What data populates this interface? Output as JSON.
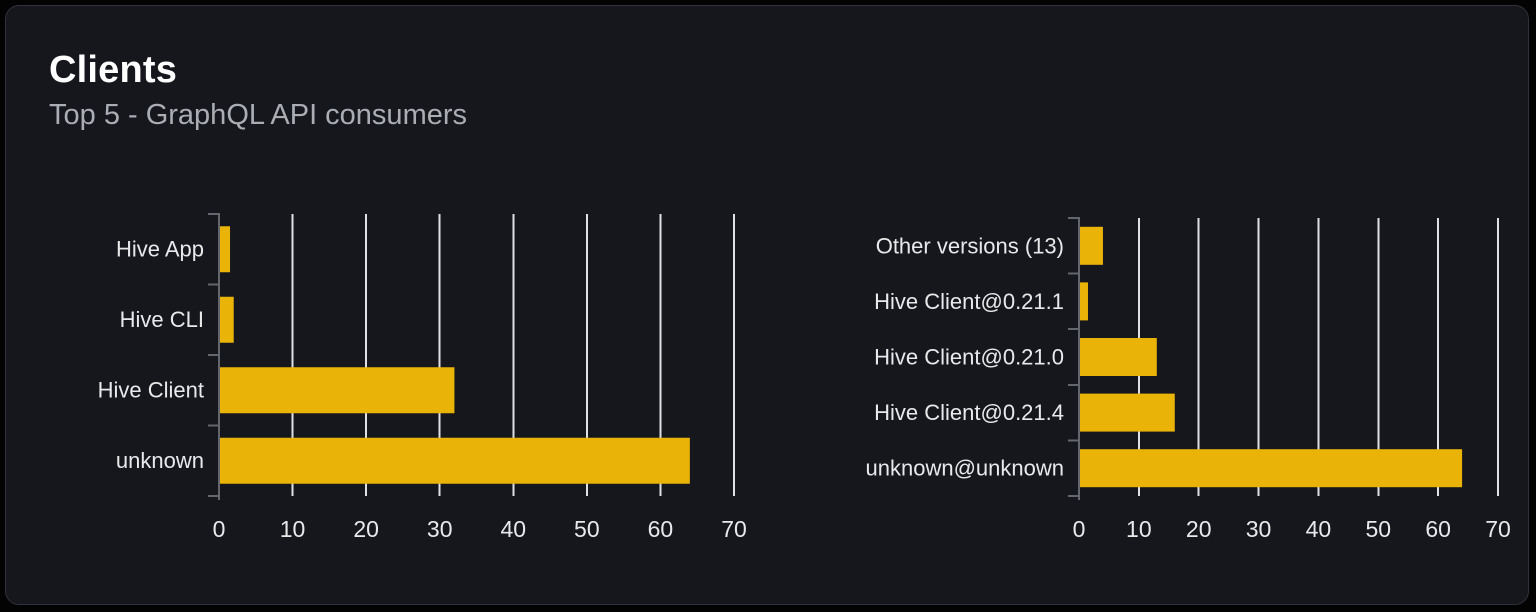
{
  "card": {
    "title": "Clients",
    "subtitle": "Top 5 - GraphQL API consumers"
  },
  "colors": {
    "page_bg": "#030303",
    "card_bg": "#15171c",
    "card_border": "#2f323a",
    "title": "#ffffff",
    "subtitle": "#aaadb4",
    "bar": "#eab308",
    "grid_line": "#dfe0e4",
    "axis": "#63666d",
    "label": "#e8e9eb"
  },
  "chart_data": [
    {
      "type": "bar",
      "orientation": "horizontal",
      "categories": [
        "Hive App",
        "Hive CLI",
        "Hive Client",
        "unknown"
      ],
      "values": [
        1.5,
        2,
        32,
        64
      ],
      "xlim": [
        0,
        70
      ],
      "xticks": [
        0,
        10,
        20,
        30,
        40,
        50,
        60,
        70
      ],
      "grid": true,
      "legend": false,
      "xlabel": "",
      "ylabel": ""
    },
    {
      "type": "bar",
      "orientation": "horizontal",
      "categories": [
        "Other versions (13)",
        "Hive Client@0.21.1",
        "Hive Client@0.21.0",
        "Hive Client@0.21.4",
        "unknown@unknown"
      ],
      "values": [
        4,
        1.5,
        13,
        16,
        64
      ],
      "xlim": [
        0,
        70
      ],
      "xticks": [
        0,
        10,
        20,
        30,
        40,
        50,
        60,
        70
      ],
      "grid": true,
      "legend": false,
      "xlabel": "",
      "ylabel": ""
    }
  ]
}
